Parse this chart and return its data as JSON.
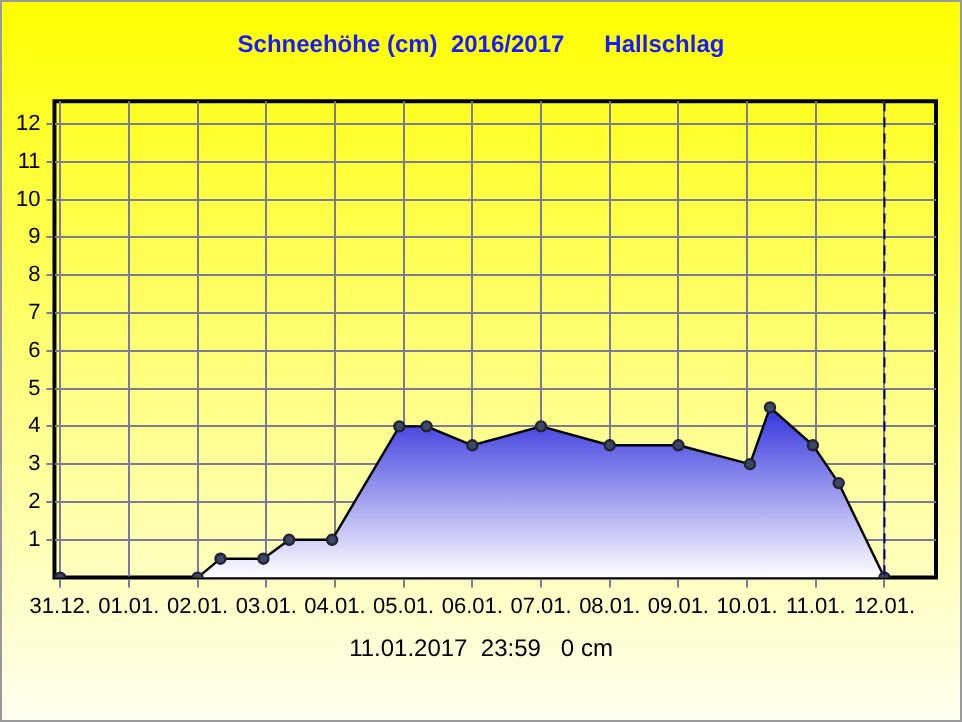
{
  "chart_data": {
    "type": "area",
    "title": "Schneehöhe (cm)  2016/2017      Hallschlag",
    "x": [
      "2016-12-31",
      "2017-01-02",
      "2017-01-02T08:00",
      "2017-01-02T23:00",
      "2017-01-03T08:00",
      "2017-01-03T23:00",
      "2017-01-04T22:30",
      "2017-01-05T08:00",
      "2017-01-06",
      "2017-01-07",
      "2017-01-08",
      "2017-01-09",
      "2017-01-10T01:00",
      "2017-01-10T08:00",
      "2017-01-10T23:00",
      "2017-01-11T08:00",
      "2017-01-11T23:59"
    ],
    "series": [
      {
        "color": "#3333dd",
        "values": [
          0,
          0,
          0.5,
          0.5,
          1,
          1,
          4,
          4,
          3.5,
          4,
          3.5,
          3.5,
          3,
          4.5,
          3.5,
          2.5,
          0
        ]
      }
    ],
    "xlim": [
      "2016-12-30T22:00",
      "2017-01-12T18:00"
    ],
    "xticks": [
      {
        "value": "2016-12-31",
        "label": "31.12."
      },
      {
        "value": "2017-01-01",
        "label": "01.01."
      },
      {
        "value": "2017-01-02",
        "label": "02.01."
      },
      {
        "value": "2017-01-03",
        "label": "03.01."
      },
      {
        "value": "2017-01-04",
        "label": "04.01."
      },
      {
        "value": "2017-01-05",
        "label": "05.01."
      },
      {
        "value": "2017-01-06",
        "label": "06.01."
      },
      {
        "value": "2017-01-07",
        "label": "07.01."
      },
      {
        "value": "2017-01-08",
        "label": "08.01."
      },
      {
        "value": "2017-01-09",
        "label": "09.01."
      },
      {
        "value": "2017-01-10",
        "label": "10.01."
      },
      {
        "value": "2017-01-11",
        "label": "11.01."
      },
      {
        "value": "2017-01-12",
        "label": "12.01."
      }
    ],
    "ylim": [
      0,
      12.6
    ],
    "yticks": [
      1,
      2,
      3,
      4,
      5,
      6,
      7,
      8,
      9,
      10,
      11,
      12
    ],
    "grid": true,
    "legend": false,
    "marker": "circle",
    "ref_lines": [
      {
        "axis": "x",
        "value": "2017-01-12",
        "color": "#000066",
        "line_style": "dashed"
      }
    ],
    "annotations": [
      "11.01.2017  23:59   0 cm"
    ]
  }
}
